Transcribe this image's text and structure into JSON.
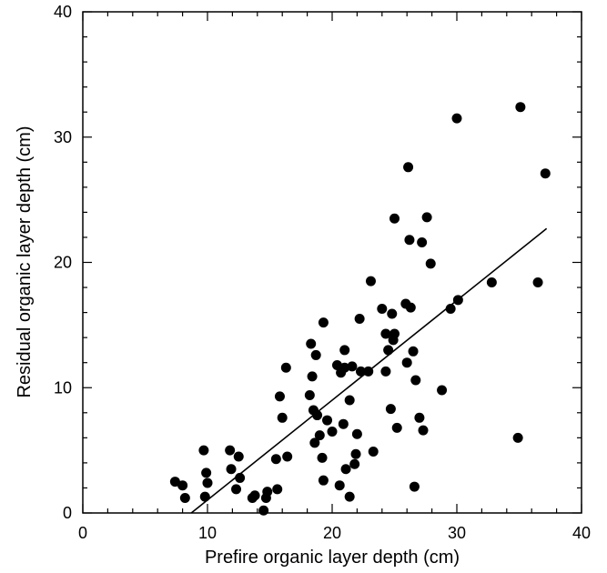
{
  "chart_data": {
    "type": "scatter",
    "title": "",
    "xlabel": "Prefire organic layer depth (cm)",
    "ylabel": "Residual organic layer depth (cm)",
    "xlim": [
      0,
      40
    ],
    "ylim": [
      0,
      40
    ],
    "xticks": [
      0,
      10,
      20,
      30,
      40
    ],
    "yticks": [
      0,
      10,
      20,
      30,
      40
    ],
    "grid": false,
    "legend": "none",
    "series": [
      {
        "marker_color": "#000000",
        "points": [
          [
            7.4,
            2.5
          ],
          [
            8.0,
            2.2
          ],
          [
            8.2,
            1.2
          ],
          [
            9.7,
            5.0
          ],
          [
            9.8,
            1.3
          ],
          [
            9.9,
            3.2
          ],
          [
            10.0,
            2.4
          ],
          [
            11.8,
            5.0
          ],
          [
            11.9,
            3.5
          ],
          [
            12.3,
            1.9
          ],
          [
            12.5,
            4.5
          ],
          [
            12.6,
            2.8
          ],
          [
            13.6,
            1.2
          ],
          [
            13.8,
            1.4
          ],
          [
            14.5,
            0.2
          ],
          [
            14.7,
            1.2
          ],
          [
            14.8,
            1.7
          ],
          [
            15.5,
            4.3
          ],
          [
            15.6,
            1.9
          ],
          [
            15.8,
            9.3
          ],
          [
            16.0,
            7.6
          ],
          [
            16.3,
            11.6
          ],
          [
            16.4,
            4.5
          ],
          [
            18.2,
            9.4
          ],
          [
            18.3,
            13.5
          ],
          [
            18.4,
            10.9
          ],
          [
            18.5,
            8.2
          ],
          [
            18.6,
            5.6
          ],
          [
            18.7,
            12.6
          ],
          [
            18.8,
            7.8
          ],
          [
            19.0,
            6.2
          ],
          [
            19.2,
            4.4
          ],
          [
            19.3,
            15.2
          ],
          [
            19.3,
            2.6
          ],
          [
            19.6,
            7.4
          ],
          [
            20.0,
            6.5
          ],
          [
            20.4,
            11.8
          ],
          [
            20.6,
            2.2
          ],
          [
            20.7,
            11.2
          ],
          [
            20.9,
            7.1
          ],
          [
            21.0,
            11.6
          ],
          [
            21.0,
            13.0
          ],
          [
            21.1,
            3.5
          ],
          [
            21.4,
            9.0
          ],
          [
            21.4,
            1.3
          ],
          [
            21.6,
            11.7
          ],
          [
            21.8,
            3.9
          ],
          [
            21.9,
            4.7
          ],
          [
            22.0,
            6.3
          ],
          [
            22.2,
            15.5
          ],
          [
            22.3,
            11.3
          ],
          [
            22.9,
            11.3
          ],
          [
            23.1,
            18.5
          ],
          [
            23.3,
            4.9
          ],
          [
            24.0,
            16.3
          ],
          [
            24.3,
            11.3
          ],
          [
            24.3,
            14.3
          ],
          [
            24.5,
            13.0
          ],
          [
            24.7,
            8.3
          ],
          [
            24.8,
            15.9
          ],
          [
            24.9,
            13.8
          ],
          [
            25.0,
            14.3
          ],
          [
            25.0,
            23.5
          ],
          [
            25.2,
            6.8
          ],
          [
            25.9,
            16.7
          ],
          [
            26.0,
            12.0
          ],
          [
            26.1,
            27.6
          ],
          [
            26.2,
            21.8
          ],
          [
            26.3,
            16.4
          ],
          [
            26.5,
            12.9
          ],
          [
            26.6,
            2.1
          ],
          [
            26.7,
            10.6
          ],
          [
            27.0,
            7.6
          ],
          [
            27.2,
            21.6
          ],
          [
            27.3,
            6.6
          ],
          [
            27.6,
            23.6
          ],
          [
            27.9,
            19.9
          ],
          [
            28.8,
            9.8
          ],
          [
            29.5,
            16.3
          ],
          [
            30.0,
            31.5
          ],
          [
            30.1,
            17.0
          ],
          [
            32.8,
            18.4
          ],
          [
            34.9,
            6.0
          ],
          [
            35.1,
            32.4
          ],
          [
            36.5,
            18.4
          ],
          [
            37.1,
            27.1
          ]
        ]
      }
    ],
    "fit_line": {
      "x": [
        8.7,
        37.2
      ],
      "y": [
        0.0,
        22.7
      ]
    }
  }
}
